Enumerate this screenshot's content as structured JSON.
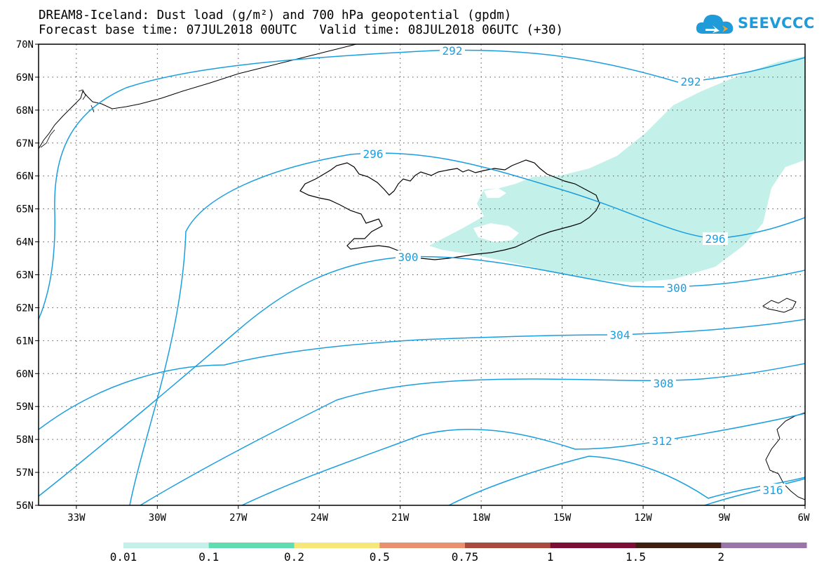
{
  "title_line1": "DREAM8-Iceland: Dust load (g/m²) and 700 hPa geopotential (gpdm)",
  "title_line2": "Forecast base time: 07JUL2018 00UTC   Valid time: 08JUL2018 06UTC (+30)",
  "logo": {
    "text": "SEEVCCC",
    "icon": "cloud-logo-icon",
    "color": "#1e9bd8"
  },
  "map": {
    "lat_labels": [
      "70N",
      "69N",
      "68N",
      "67N",
      "66N",
      "65N",
      "64N",
      "63N",
      "62N",
      "61N",
      "60N",
      "59N",
      "58N",
      "57N",
      "56N"
    ],
    "lon_labels": [
      "33W",
      "30W",
      "27W",
      "24W",
      "21W",
      "18W",
      "15W",
      "12W",
      "9W",
      "6W"
    ],
    "lat_range": [
      56,
      70
    ],
    "lon_range": [
      -34.4,
      -6
    ],
    "grid": "dotted",
    "contour_color": "#1a9ee0",
    "contour_labels": [
      {
        "id": "c292a",
        "text": "292"
      },
      {
        "id": "c292b",
        "text": "292"
      },
      {
        "id": "c296a",
        "text": "296"
      },
      {
        "id": "c296b",
        "text": "296"
      },
      {
        "id": "c300a",
        "text": "300"
      },
      {
        "id": "c300b",
        "text": "300"
      },
      {
        "id": "c304",
        "text": "304"
      },
      {
        "id": "c308",
        "text": "308"
      },
      {
        "id": "c312",
        "text": "312"
      },
      {
        "id": "c316",
        "text": "316"
      }
    ],
    "dust_fill_color": "#c4f0ea"
  },
  "colorbar": {
    "labels": [
      "0.01",
      "0.1",
      "0.2",
      "0.5",
      "0.75",
      "1",
      "1.5",
      "2"
    ],
    "colors": [
      "#c4f0ea",
      "#5fdcb0",
      "#f5e878",
      "#e89070",
      "#a84a40",
      "#7c0f35",
      "#3e2010",
      "#9a76a8"
    ]
  }
}
